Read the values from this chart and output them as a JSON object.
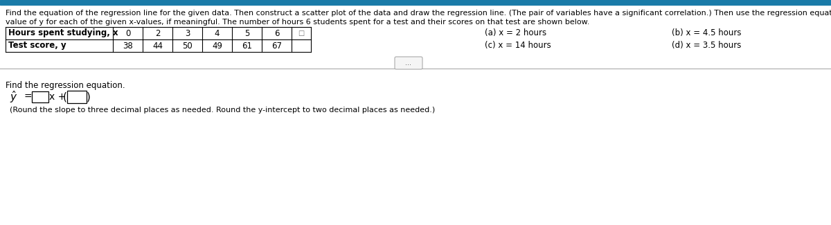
{
  "header_line1": "Find the equation of the regression line for the given data. Then construct a scatter plot of the data and draw the regression line. (The pair of variables have a significant correlation.) Then use the regression equation to predict the",
  "header_line2": "value of y for each of the given x-values, if meaningful. The number of hours 6 students spent for a test and their scores on that test are shown below.",
  "table_row1_label": "Hours spent studying, x",
  "table_row2_label": "Test score, y",
  "x_values": [
    "0",
    "2",
    "3",
    "4",
    "5",
    "6"
  ],
  "y_values": [
    "38",
    "44",
    "50",
    "49",
    "61",
    "67"
  ],
  "pred_a": "(a) x = 2 hours",
  "pred_b": "(b) x = 4.5 hours",
  "pred_c": "(c) x = 14 hours",
  "pred_d": "(d) x = 3.5 hours",
  "section_label": "Find the regression equation.",
  "equation_note": "(Round the slope to three decimal places as needed. Round the y-intercept to two decimal places as needed.)",
  "bg_color": "#ffffff",
  "text_color": "#000000",
  "top_bar_color": "#1a7ba8",
  "divider_color": "#aaaaaa",
  "font_size_header": 8.0,
  "font_size_table": 8.5,
  "font_size_section": 8.5,
  "font_size_note": 8.0
}
